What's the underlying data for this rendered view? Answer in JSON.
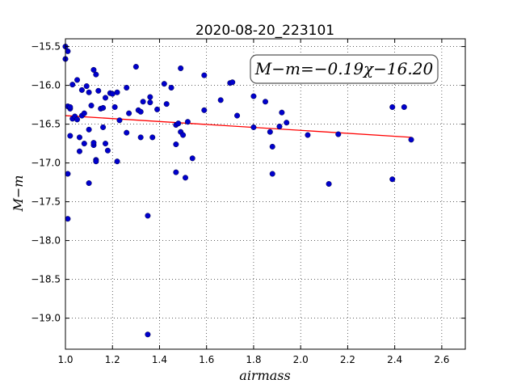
{
  "chart_data": {
    "type": "scatter",
    "title": "2020-08-20_223101",
    "xlabel": "airmass",
    "ylabel": "M−m",
    "xlim": [
      1.0,
      2.7
    ],
    "ylim": [
      -19.4,
      -15.4
    ],
    "y_inverted": true,
    "grid": true,
    "xticks": [
      "1.0",
      "1.2",
      "1.4",
      "1.6",
      "1.8",
      "2.0",
      "2.2",
      "2.4",
      "2.6"
    ],
    "yticks": [
      "−15.5",
      "−16.0",
      "−16.5",
      "−17.0",
      "−17.5",
      "−18.0",
      "−18.5",
      "−19.0"
    ],
    "annotation": "M−m=−0.19χ−16.20",
    "colors": {
      "points": "#0000cc",
      "fit": "#ff0000"
    },
    "fit": {
      "slope": -0.19,
      "intercept": -16.2,
      "x_range": [
        1.0,
        2.47
      ]
    },
    "series": [
      {
        "x": [
          1.0,
          1.0,
          1.01,
          1.01,
          1.01,
          1.01,
          1.02,
          1.02,
          1.02,
          1.03,
          1.03,
          1.04,
          1.05,
          1.05,
          1.06,
          1.06,
          1.07,
          1.07,
          1.08,
          1.08,
          1.09,
          1.1,
          1.1,
          1.1,
          1.11,
          1.12,
          1.12,
          1.12,
          1.13,
          1.13,
          1.13,
          1.14,
          1.15,
          1.16,
          1.16,
          1.17,
          1.17,
          1.18,
          1.19,
          1.2,
          1.21,
          1.22,
          1.22,
          1.23,
          1.26,
          1.26,
          1.27,
          1.3,
          1.31,
          1.32,
          1.32,
          1.33,
          1.35,
          1.35,
          1.36,
          1.36,
          1.37,
          1.39,
          1.42,
          1.43,
          1.45,
          1.47,
          1.47,
          1.47,
          1.48,
          1.49,
          1.49,
          1.5,
          1.51,
          1.52,
          1.54,
          1.59,
          1.59,
          1.66,
          1.7,
          1.71,
          1.73,
          1.8,
          1.8,
          1.85,
          1.87,
          1.88,
          1.88,
          1.91,
          1.92,
          1.94,
          2.03,
          2.12,
          2.16,
          2.39,
          2.39,
          2.44,
          2.47
        ],
        "y": [
          -15.5,
          -15.66,
          -16.27,
          -17.14,
          -17.72,
          -15.56,
          -16.3,
          -16.28,
          -16.65,
          -16.43,
          -15.99,
          -16.4,
          -15.93,
          -16.44,
          -16.67,
          -16.85,
          -16.39,
          -16.06,
          -16.75,
          -16.36,
          -16.01,
          -16.09,
          -16.57,
          -17.26,
          -16.26,
          -16.77,
          -16.74,
          -15.8,
          -16.96,
          -16.98,
          -15.86,
          -16.07,
          -16.3,
          -16.29,
          -16.54,
          -16.75,
          -16.16,
          -16.84,
          -16.1,
          -16.11,
          -16.28,
          -16.09,
          -16.98,
          -16.45,
          -16.61,
          -16.03,
          -16.36,
          -15.76,
          -16.32,
          -16.34,
          -16.67,
          -16.21,
          -17.68,
          -19.21,
          -16.22,
          -16.15,
          -16.67,
          -16.31,
          -15.98,
          -16.24,
          -16.03,
          -16.76,
          -16.51,
          -17.12,
          -16.49,
          -15.78,
          -16.6,
          -16.64,
          -17.19,
          -16.47,
          -16.94,
          -16.32,
          -15.87,
          -16.19,
          -15.97,
          -15.96,
          -16.39,
          -16.14,
          -16.54,
          -16.21,
          -16.6,
          -16.79,
          -17.14,
          -16.53,
          -16.35,
          -16.48,
          -16.64,
          -17.27,
          -16.63,
          -16.28,
          -17.21,
          -16.28,
          -16.7
        ]
      }
    ]
  }
}
